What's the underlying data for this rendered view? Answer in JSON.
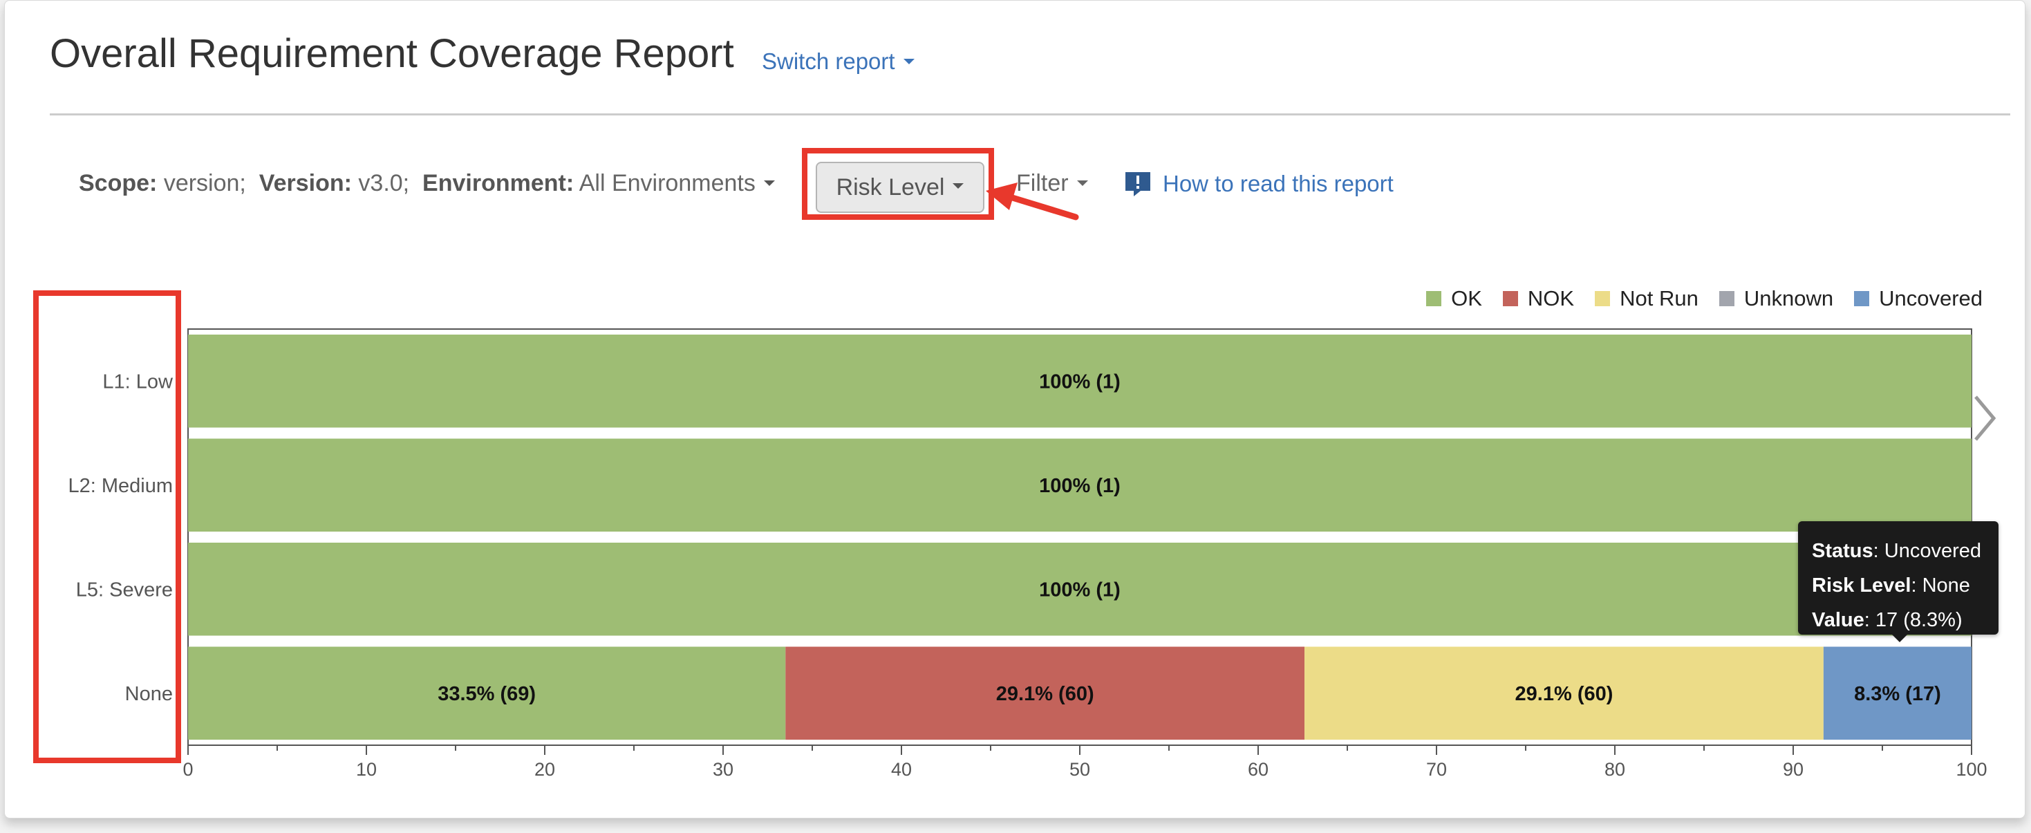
{
  "header": {
    "title": "Overall Requirement Coverage Report",
    "switch_report": "Switch report"
  },
  "toolbar": {
    "scope_label": "Scope:",
    "scope_value": "version;",
    "version_label": "Version:",
    "version_value": "v3.0;",
    "environment_label": "Environment:",
    "environment_value": "All Environments",
    "risk_level_button": "Risk Level",
    "filter_button": "Filter",
    "help_link": "How to read this report"
  },
  "icons": {
    "caret": "chevron-down-icon",
    "help": "info-bubble-icon",
    "annotation_arrow": "arrow-icon",
    "scroll": "chevron-right-icon"
  },
  "colors": {
    "ok": "#9ebd74",
    "nok": "#c3635b",
    "not_run": "#ecdc88",
    "unknown": "#a2a5ad",
    "uncovered": "#6f97c6",
    "highlight": "#e8382c",
    "link": "#3b73b9"
  },
  "chart_data": {
    "type": "bar",
    "orientation": "horizontal",
    "stacked": true,
    "categories": [
      "L1: Low",
      "L2: Medium",
      "L5: Severe",
      "None"
    ],
    "series": [
      {
        "name": "OK",
        "values": [
          100,
          100,
          100,
          33.5
        ],
        "labels": [
          "100% (1)",
          "100% (1)",
          "100% (1)",
          "33.5% (69)"
        ]
      },
      {
        "name": "NOK",
        "values": [
          0,
          0,
          0,
          29.1
        ],
        "labels": [
          "",
          "",
          "",
          "29.1% (60)"
        ]
      },
      {
        "name": "Not Run",
        "values": [
          0,
          0,
          0,
          29.1
        ],
        "labels": [
          "",
          "",
          "",
          "29.1% (60)"
        ]
      },
      {
        "name": "Unknown",
        "values": [
          0,
          0,
          0,
          0
        ],
        "labels": [
          "",
          "",
          "",
          ""
        ]
      },
      {
        "name": "Uncovered",
        "values": [
          0,
          0,
          0,
          8.3
        ],
        "labels": [
          "",
          "",
          "",
          "8.3% (17)"
        ]
      }
    ],
    "xlim": [
      0,
      100
    ],
    "xticks": [
      0,
      10,
      20,
      30,
      40,
      50,
      60,
      70,
      80,
      90,
      100
    ],
    "legend_position": "top-right",
    "grid": false
  },
  "tooltip": {
    "status_label": "Status",
    "status_value": ": Uncovered",
    "risk_label": "Risk Level",
    "risk_value": ": None",
    "value_label": "Value",
    "value_value": ": 17 (8.3%)"
  }
}
